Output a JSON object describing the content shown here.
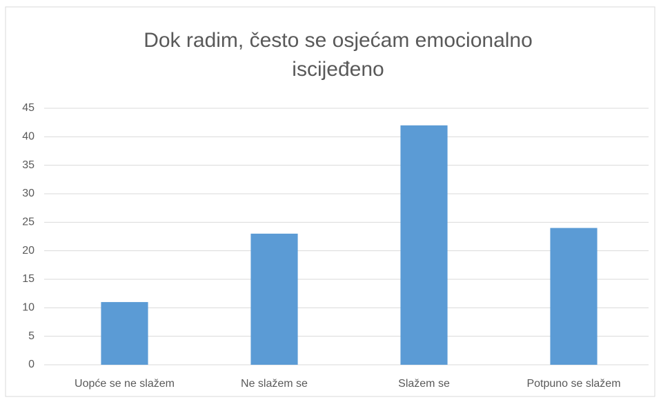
{
  "chart_data": {
    "type": "bar",
    "title": "Dok radim, često se osjećam emocionalno iscijeđeno",
    "categories": [
      "Uopće se ne slažem",
      "Ne slažem se",
      "Slažem se",
      "Potpuno se slažem"
    ],
    "values": [
      11,
      23,
      42,
      24
    ],
    "color": "#5b9bd5",
    "ylim": [
      0,
      45
    ],
    "yticks": [
      0,
      5,
      10,
      15,
      20,
      25,
      30,
      35,
      40,
      45
    ],
    "grid": true
  }
}
